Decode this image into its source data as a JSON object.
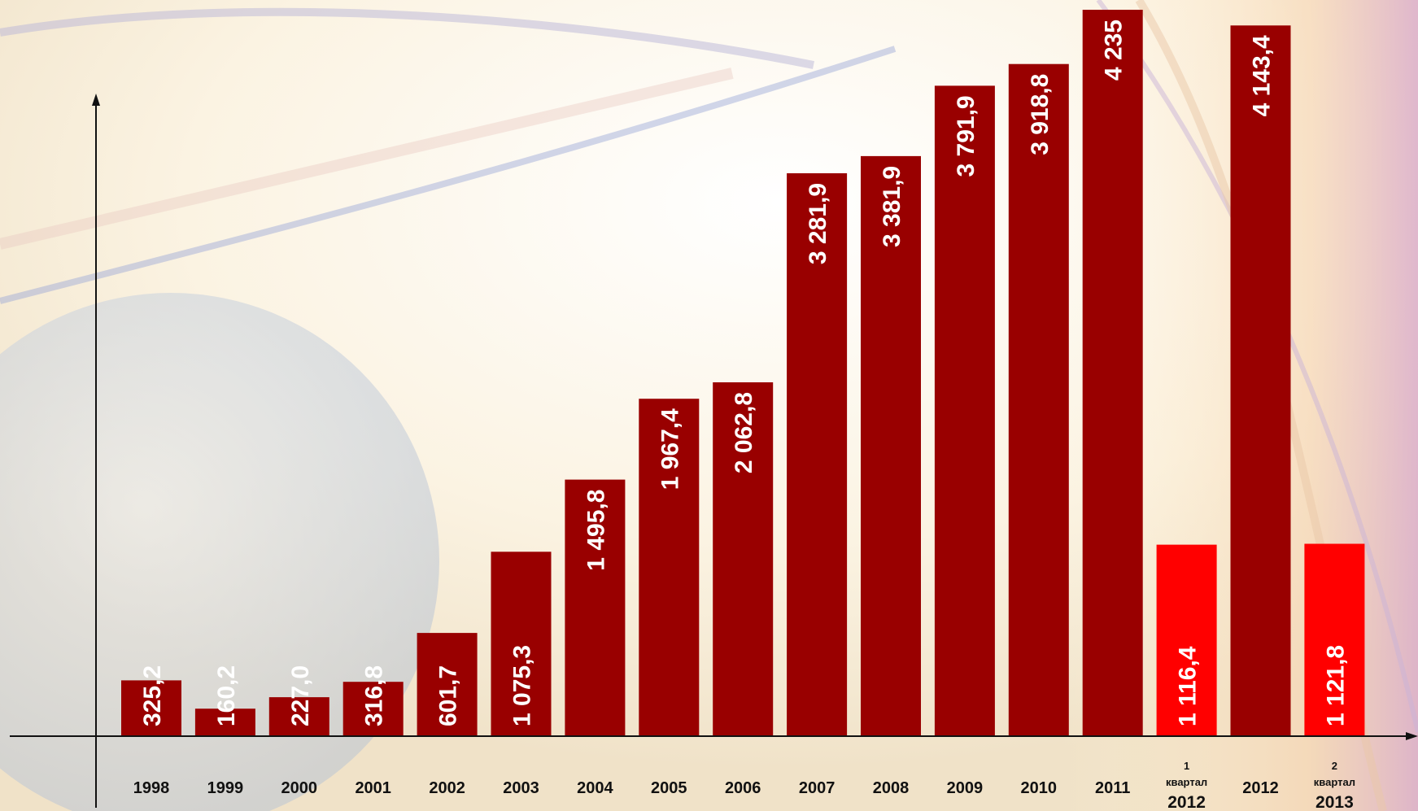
{
  "chart_data": {
    "type": "bar",
    "categories": [
      [
        "1998"
      ],
      [
        "1999"
      ],
      [
        "2000"
      ],
      [
        "2001"
      ],
      [
        "2002"
      ],
      [
        "2003"
      ],
      [
        "2004"
      ],
      [
        "2005"
      ],
      [
        "2006"
      ],
      [
        "2007"
      ],
      [
        "2008"
      ],
      [
        "2009"
      ],
      [
        "2010"
      ],
      [
        "2011"
      ],
      [
        "1",
        "квартал",
        "2012"
      ],
      [
        "2012"
      ],
      [
        "2",
        "квартал",
        "2013"
      ]
    ],
    "values": [
      325.2,
      160.2,
      227.0,
      316.8,
      601.7,
      1075.3,
      1495.8,
      1967.4,
      2062.8,
      3281.9,
      3381.9,
      3791.9,
      3918.8,
      4235,
      1116.4,
      4143.4,
      1121.8
    ],
    "data_labels": [
      "325,2",
      "160,2",
      "227,0",
      "316,8",
      "601,7",
      "1 075,3",
      "1 495,8",
      "1 967,4",
      "2 062,8",
      "3 281,9",
      "3 381,9",
      "3 791,9",
      "3 918,8",
      "4 235",
      "1 116,4",
      "4 143,4",
      "1 121,8"
    ],
    "highlight": [
      false,
      false,
      false,
      false,
      false,
      false,
      false,
      false,
      false,
      false,
      false,
      false,
      false,
      false,
      true,
      false,
      true
    ],
    "ylim": [
      0,
      4400
    ],
    "grid": false,
    "legend": "none",
    "colors": {
      "bar": "#990000",
      "highlight_bar": "#ff0000",
      "label": "#ffffff",
      "axis": "#111111"
    }
  }
}
